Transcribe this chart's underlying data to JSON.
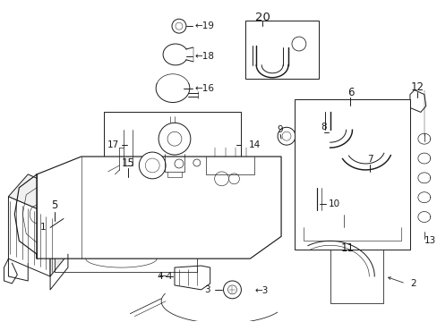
{
  "bg_color": "#ffffff",
  "line_color": "#1a1a1a",
  "fig_width": 4.89,
  "fig_height": 3.6,
  "dpi": 100,
  "label_fontsize": 7.5,
  "note_fontsize": 6.5
}
